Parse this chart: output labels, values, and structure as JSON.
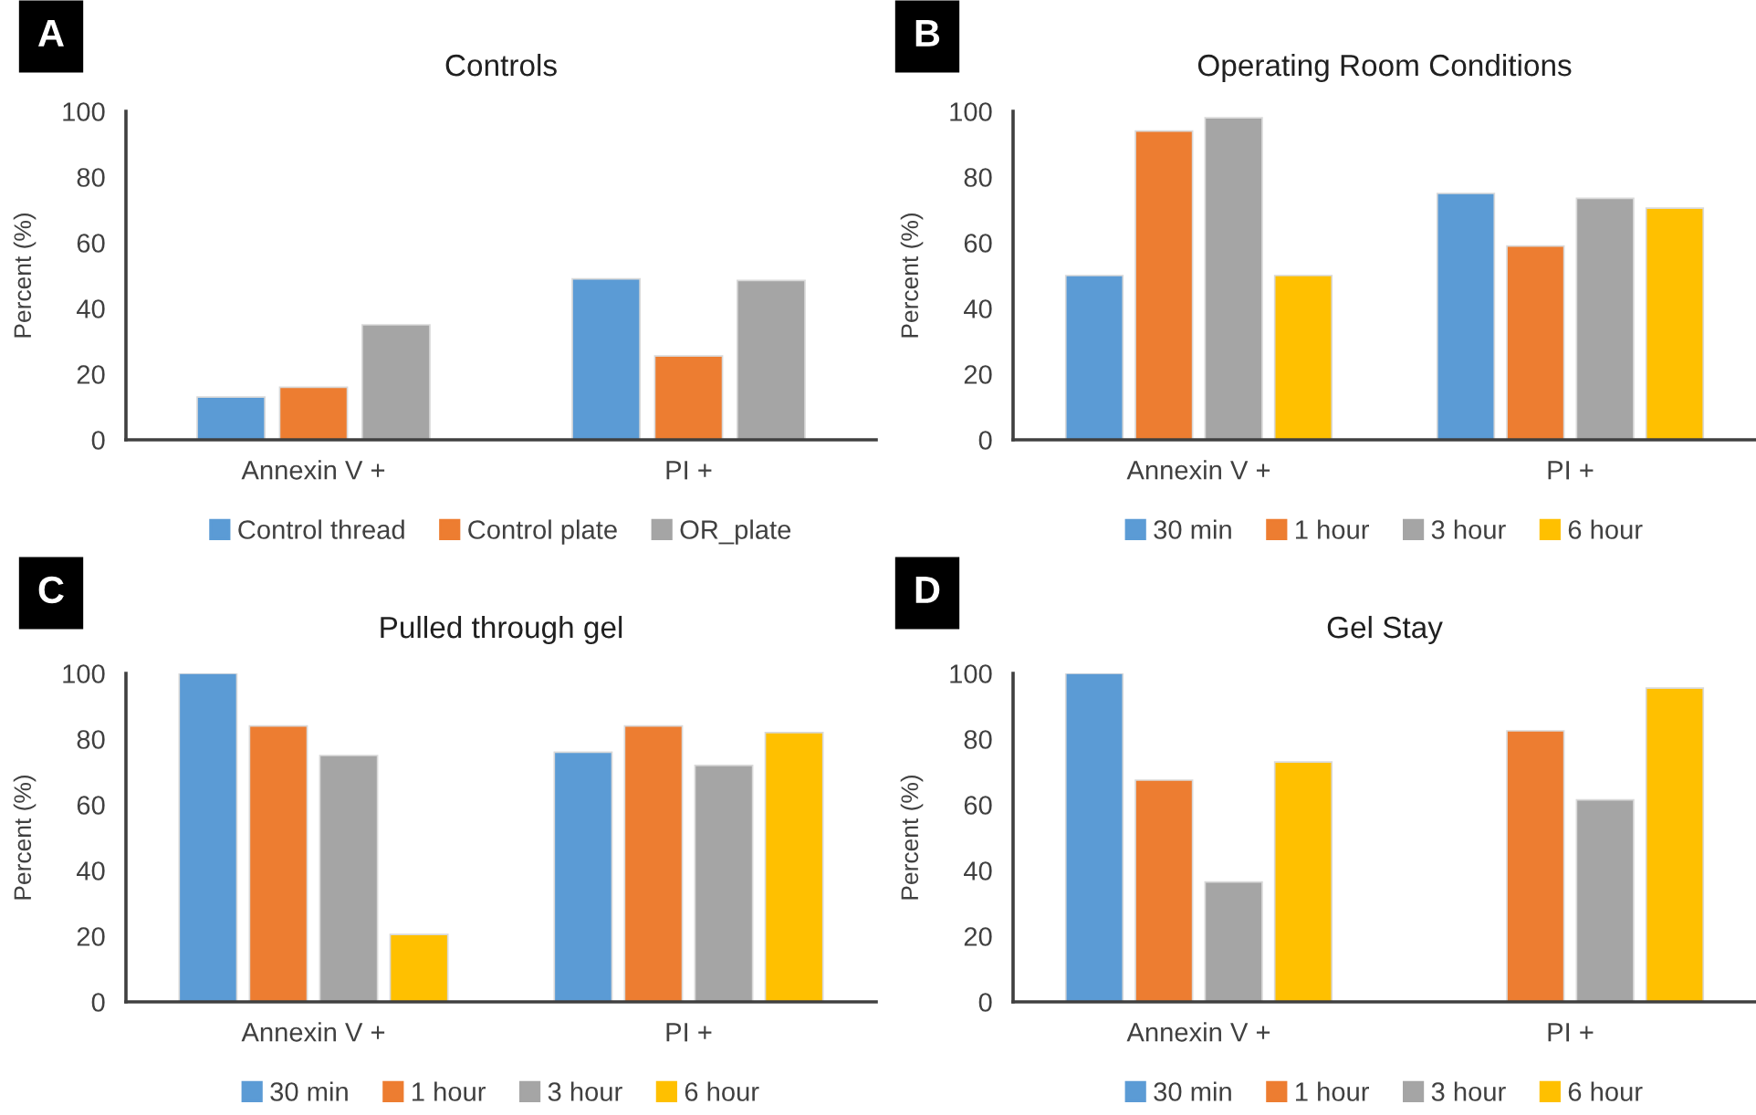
{
  "chart_data": [
    {
      "type": "bar",
      "title": "Controls",
      "ylabel": "Percent (%)",
      "annotations": [
        "A"
      ],
      "categories": [
        "Annexin V +",
        "PI +"
      ],
      "ylim": [
        0,
        100
      ],
      "yticks": [
        0,
        20,
        40,
        60,
        80,
        100
      ],
      "legend": "bottom",
      "grid": false,
      "series": [
        {
          "name": "Control thread",
          "color": "#5b9bd5",
          "values": [
            13,
            49
          ]
        },
        {
          "name": "Control plate",
          "color": "#ed7d31",
          "values": [
            16,
            25.5
          ]
        },
        {
          "name": "OR_plate",
          "color": "#a5a5a5",
          "values": [
            35,
            48.5
          ]
        }
      ]
    },
    {
      "type": "bar",
      "title": "Operating Room Conditions",
      "ylabel": "Percent (%)",
      "annotations": [
        "B"
      ],
      "categories": [
        "Annexin V +",
        "PI +"
      ],
      "ylim": [
        0,
        100
      ],
      "yticks": [
        0,
        20,
        40,
        60,
        80,
        100
      ],
      "legend": "bottom",
      "grid": false,
      "series": [
        {
          "name": "30 min",
          "color": "#5b9bd5",
          "values": [
            50,
            75
          ]
        },
        {
          "name": "1 hour",
          "color": "#ed7d31",
          "values": [
            94,
            59
          ]
        },
        {
          "name": "3 hour",
          "color": "#a5a5a5",
          "values": [
            98,
            73.5
          ]
        },
        {
          "name": "6 hour",
          "color": "#ffc000",
          "values": [
            50,
            70.5
          ]
        }
      ]
    },
    {
      "type": "bar",
      "title": "Pulled through gel",
      "ylabel": "Percent (%)",
      "annotations": [
        "C"
      ],
      "categories": [
        "Annexin V +",
        "PI +"
      ],
      "ylim": [
        0,
        100
      ],
      "yticks": [
        0,
        20,
        40,
        60,
        80,
        100
      ],
      "legend": "bottom",
      "grid": false,
      "series": [
        {
          "name": "30 min",
          "color": "#5b9bd5",
          "values": [
            100,
            76
          ]
        },
        {
          "name": "1 hour",
          "color": "#ed7d31",
          "values": [
            84,
            84
          ]
        },
        {
          "name": "3 hour",
          "color": "#a5a5a5",
          "values": [
            75,
            72
          ]
        },
        {
          "name": "6 hour",
          "color": "#ffc000",
          "values": [
            20.5,
            82
          ]
        }
      ]
    },
    {
      "type": "bar",
      "title": "Gel Stay",
      "ylabel": "Percent (%)",
      "annotations": [
        "D"
      ],
      "categories": [
        "Annexin V +",
        "PI +"
      ],
      "ylim": [
        0,
        100
      ],
      "yticks": [
        0,
        20,
        40,
        60,
        80,
        100
      ],
      "legend": "bottom",
      "grid": false,
      "series": [
        {
          "name": "30 min",
          "color": "#5b9bd5",
          "values": [
            100,
            null
          ]
        },
        {
          "name": "1 hour",
          "color": "#ed7d31",
          "values": [
            67.5,
            82.5
          ]
        },
        {
          "name": "3 hour",
          "color": "#a5a5a5",
          "values": [
            36.5,
            61.5
          ]
        },
        {
          "name": "6 hour",
          "color": "#ffc000",
          "values": [
            73,
            95.5
          ]
        }
      ]
    }
  ]
}
